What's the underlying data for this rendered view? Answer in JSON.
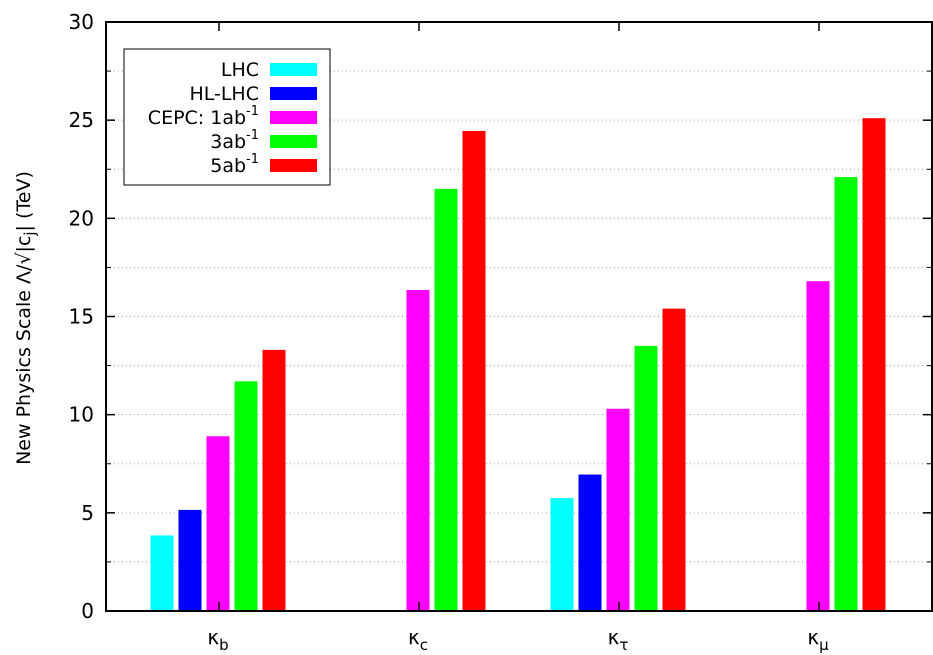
{
  "chart_data": {
    "type": "bar",
    "ylabel": "New Physics Scale Λ/√|c",
    "ylabel_sub": "j",
    "ylabel_tail": "| (TeV)",
    "ylim": [
      0,
      30
    ],
    "yticks": [
      0,
      5,
      10,
      15,
      20,
      25,
      30
    ],
    "grid": true,
    "legend_position": "top-left",
    "categories": [
      {
        "base": "κ",
        "sub": "b"
      },
      {
        "base": "κ",
        "sub": "c"
      },
      {
        "base": "κ",
        "sub": "τ"
      },
      {
        "base": "κ",
        "sub": "μ"
      }
    ],
    "series": [
      {
        "name": "LHC",
        "label_main": "LHC",
        "label_sup": "",
        "color": "#00ffff",
        "values": [
          3.85,
          null,
          5.75,
          null
        ]
      },
      {
        "name": "HL-LHC",
        "label_main": "HL-LHC",
        "label_sup": "",
        "color": "#0000ff",
        "values": [
          5.15,
          null,
          6.95,
          null
        ]
      },
      {
        "name": "CEPC: 1ab-1",
        "label_main": "CEPC: 1ab",
        "label_sup": "-1",
        "color": "#ff00ff",
        "values": [
          8.9,
          16.35,
          10.3,
          16.8
        ]
      },
      {
        "name": "3ab-1",
        "label_main": "3ab",
        "label_sup": "-1",
        "color": "#00ff00",
        "values": [
          11.7,
          21.5,
          13.5,
          22.1
        ]
      },
      {
        "name": "5ab-1",
        "label_main": "5ab",
        "label_sup": "-1",
        "color": "#ff0000",
        "values": [
          13.3,
          24.45,
          15.4,
          25.1
        ]
      }
    ]
  }
}
